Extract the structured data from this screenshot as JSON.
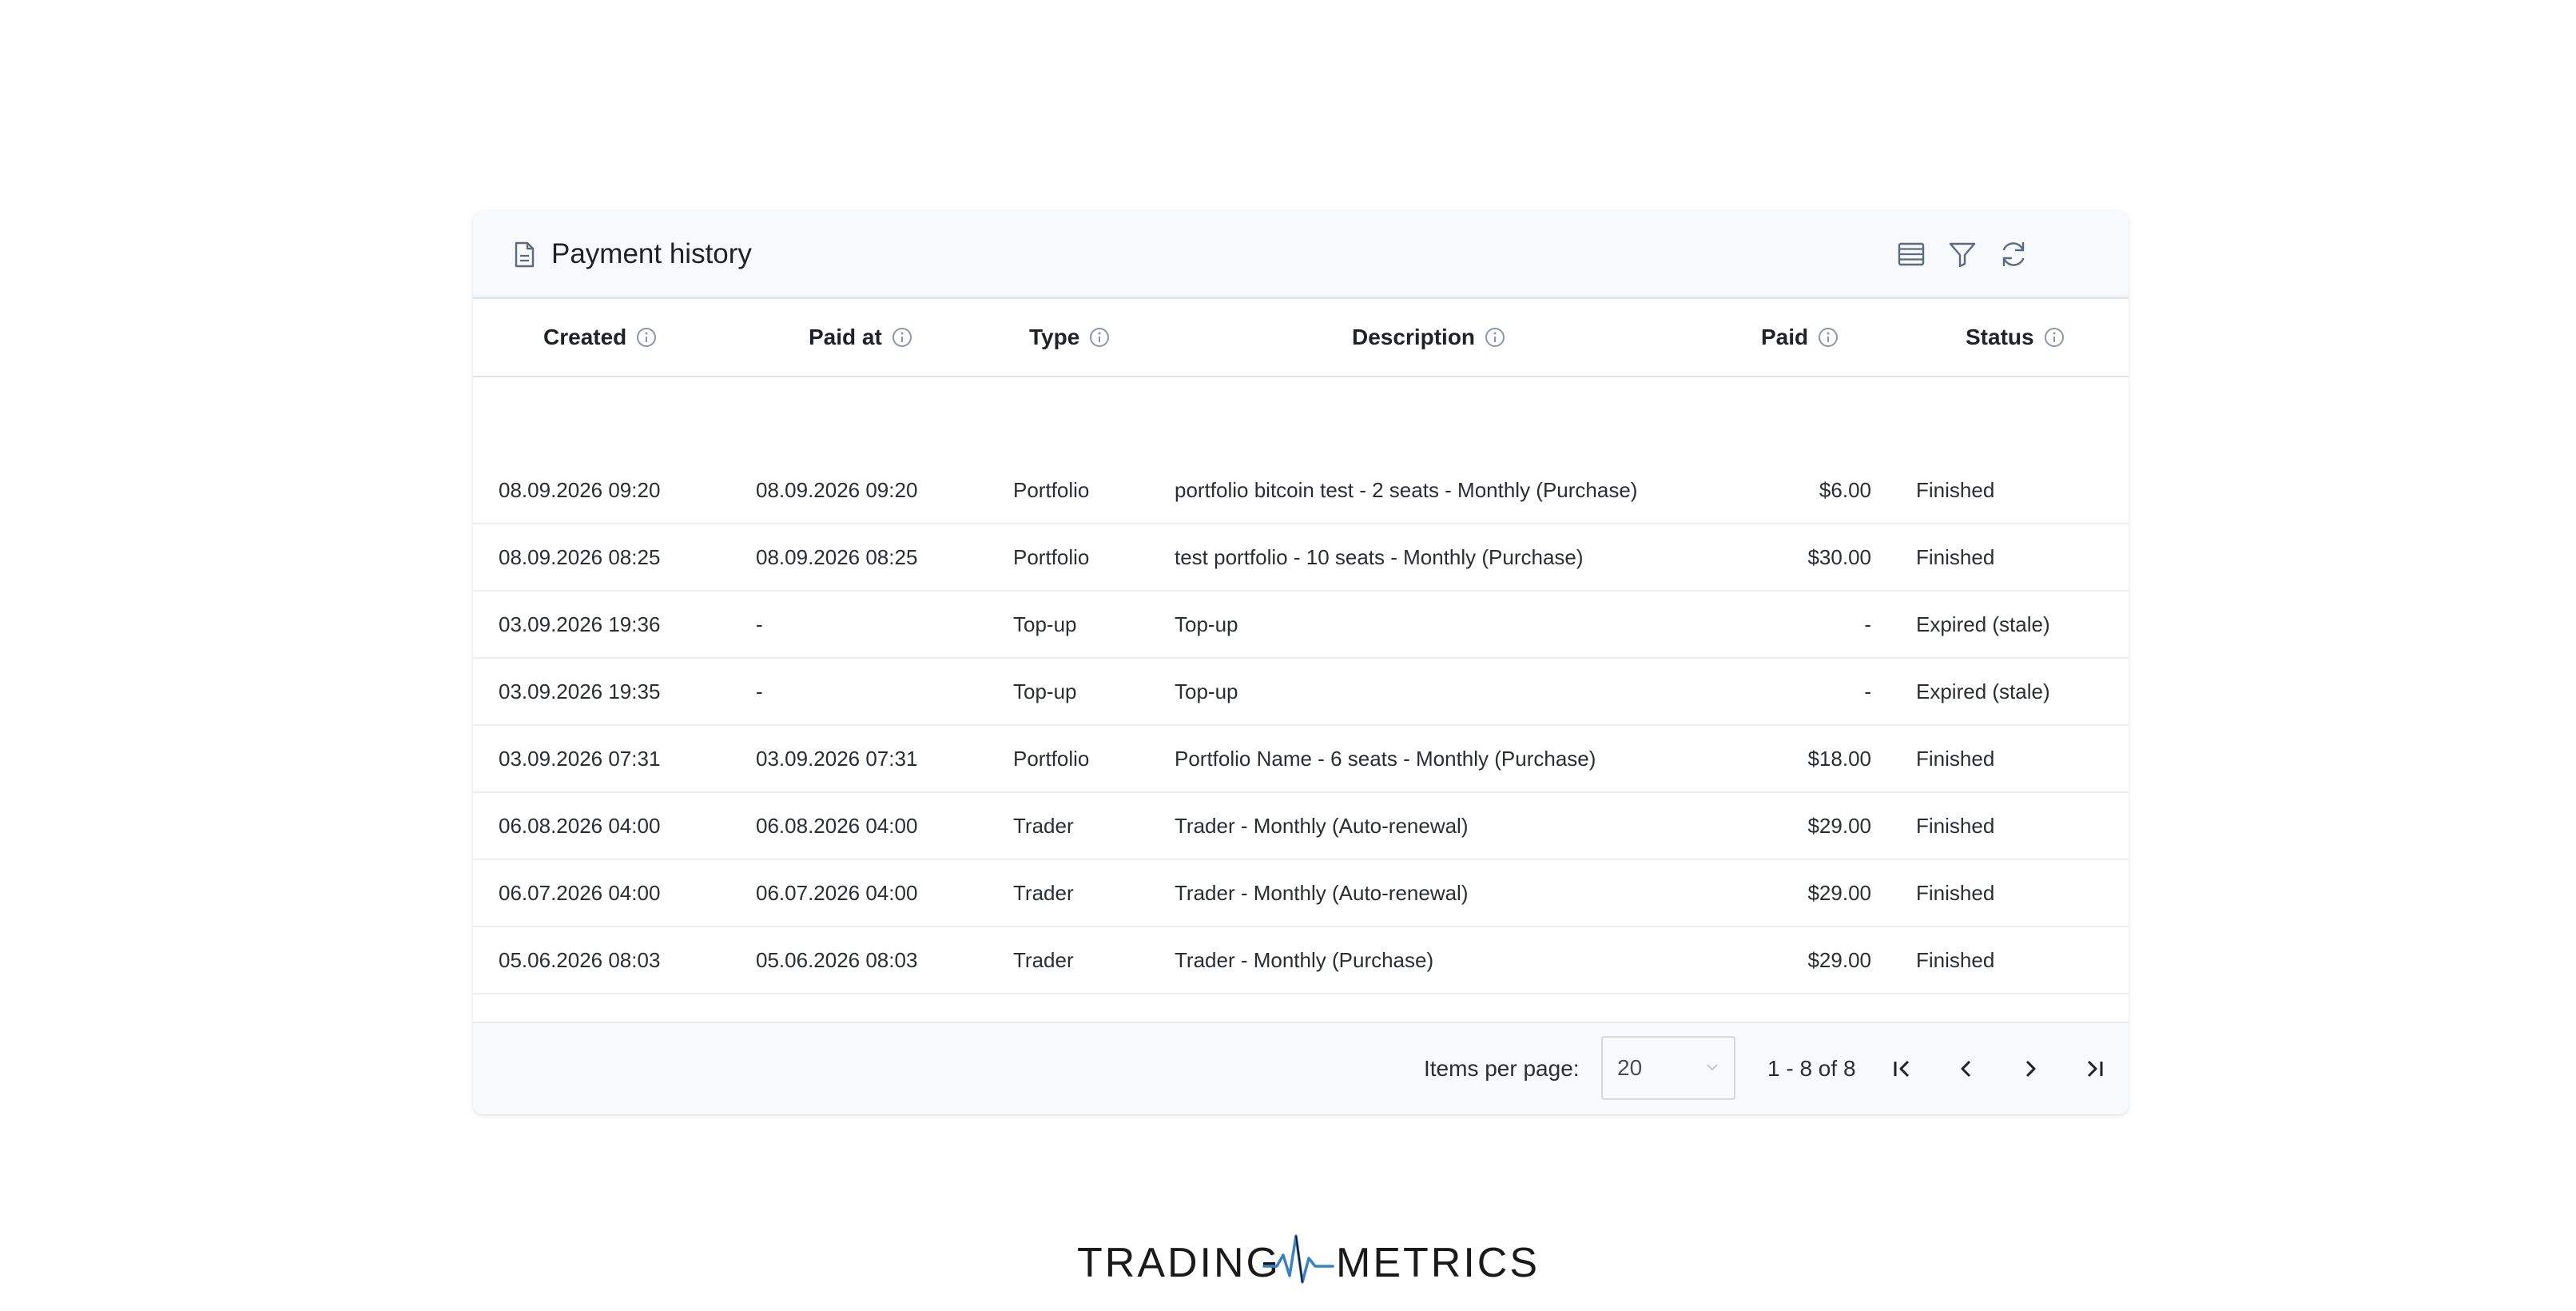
{
  "card": {
    "title": "Payment history",
    "icons": [
      "document-icon",
      "columns-icon",
      "filter-icon",
      "refresh-icon"
    ]
  },
  "columns": [
    {
      "label": "Created"
    },
    {
      "label": "Paid at"
    },
    {
      "label": "Type"
    },
    {
      "label": "Description"
    },
    {
      "label": "Paid"
    },
    {
      "label": "Status"
    }
  ],
  "rows": [
    {
      "created": "08.09.2026 09:20",
      "paid_at": "08.09.2026 09:20",
      "type": "Portfolio",
      "description": "portfolio bitcoin test - 2 seats - Monthly (Purchase)",
      "paid": "$6.00",
      "status": "Finished"
    },
    {
      "created": "08.09.2026 08:25",
      "paid_at": "08.09.2026 08:25",
      "type": "Portfolio",
      "description": "test portfolio - 10 seats - Monthly (Purchase)",
      "paid": "$30.00",
      "status": "Finished"
    },
    {
      "created": "03.09.2026 19:36",
      "paid_at": "-",
      "type": "Top-up",
      "description": "Top-up",
      "paid": "-",
      "status": "Expired (stale)"
    },
    {
      "created": "03.09.2026 19:35",
      "paid_at": "-",
      "type": "Top-up",
      "description": "Top-up",
      "paid": "-",
      "status": "Expired (stale)"
    },
    {
      "created": "03.09.2026 07:31",
      "paid_at": "03.09.2026 07:31",
      "type": "Portfolio",
      "description": "Portfolio Name - 6 seats - Monthly (Purchase)",
      "paid": "$18.00",
      "status": "Finished"
    },
    {
      "created": "06.08.2026 04:00",
      "paid_at": "06.08.2026 04:00",
      "type": "Trader",
      "description": "Trader - Monthly (Auto-renewal)",
      "paid": "$29.00",
      "status": "Finished"
    },
    {
      "created": "06.07.2026 04:00",
      "paid_at": "06.07.2026 04:00",
      "type": "Trader",
      "description": "Trader - Monthly (Auto-renewal)",
      "paid": "$29.00",
      "status": "Finished"
    },
    {
      "created": "05.06.2026 08:03",
      "paid_at": "05.06.2026 08:03",
      "type": "Trader",
      "description": "Trader - Monthly (Purchase)",
      "paid": "$29.00",
      "status": "Finished"
    }
  ],
  "pagination": {
    "items_per_page_label": "Items per page:",
    "items_per_page_value": "20",
    "range_label": "1 - 8 of 8"
  },
  "logo": {
    "left_text": "TRADING",
    "right_text": "METRICS"
  },
  "colors": {
    "header_bg": "#f7f9fb",
    "icon": "#5b6b7b",
    "info_icon": "#8a97a5",
    "logo_wave": "#3b82c4"
  }
}
